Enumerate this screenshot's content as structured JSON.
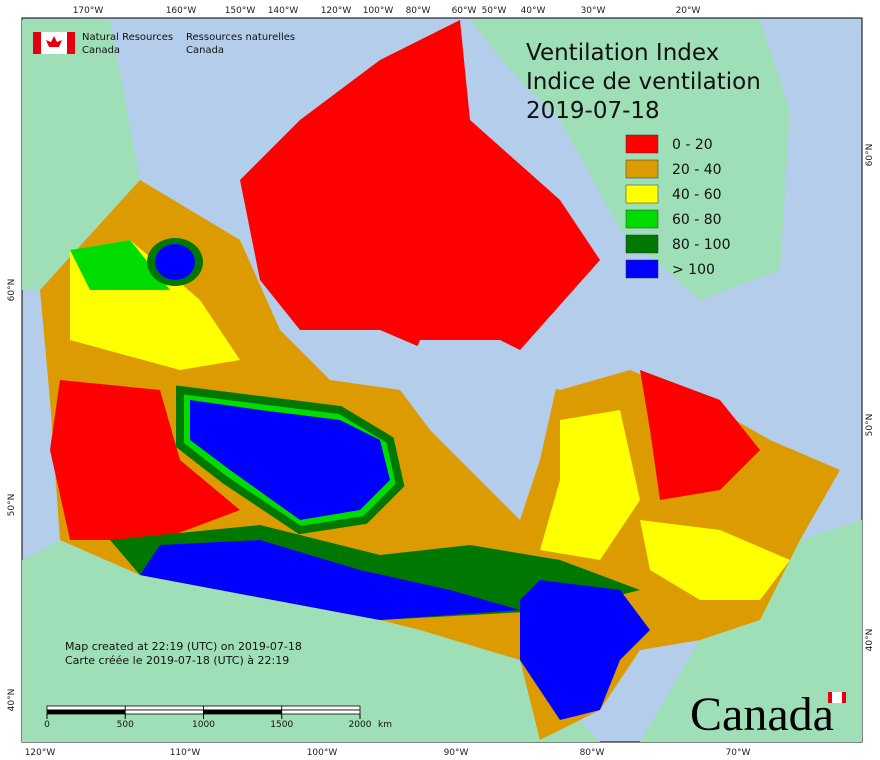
{
  "agency": {
    "en": [
      "Natural Resources",
      "Canada"
    ],
    "fr": [
      "Ressources naturelles",
      "Canada"
    ]
  },
  "title": [
    "Ventilation Index",
    "Indice de ventilation",
    "2019-07-18"
  ],
  "legend": [
    {
      "label": "0 - 20",
      "color": "#ff0000"
    },
    {
      "label": "20 - 40",
      "color": "#dc9b00"
    },
    {
      "label": "40 - 60",
      "color": "#ffff00"
    },
    {
      "label": "60 - 80",
      "color": "#00dc00"
    },
    {
      "label": "80 - 100",
      "color": "#007800"
    },
    {
      "label": "> 100",
      "color": "#0000ff"
    }
  ],
  "top_axis": [
    "170°W",
    "160°W",
    "150°W",
    "140°W",
    "120°W",
    "100°W",
    "80°W",
    "60°W",
    "50°W",
    "40°W",
    "30°W",
    "20°W"
  ],
  "bottom_axis": [
    "120°W",
    "110°W",
    "100°W",
    "90°W",
    "80°W",
    "70°W"
  ],
  "left_axis": [
    "60°N",
    "50°N",
    "40°N"
  ],
  "right_axis": [
    "60°N",
    "50°N",
    "40°N"
  ],
  "footer": [
    "Map created at 22:19 (UTC) on 2019-07-18",
    "Carte créée le 2019-07-18 (UTC) à 22:19"
  ],
  "scale_bar": {
    "ticks": [
      0,
      500,
      1000,
      1500,
      2000
    ],
    "unit": "km"
  },
  "wordmark": "Canada"
}
